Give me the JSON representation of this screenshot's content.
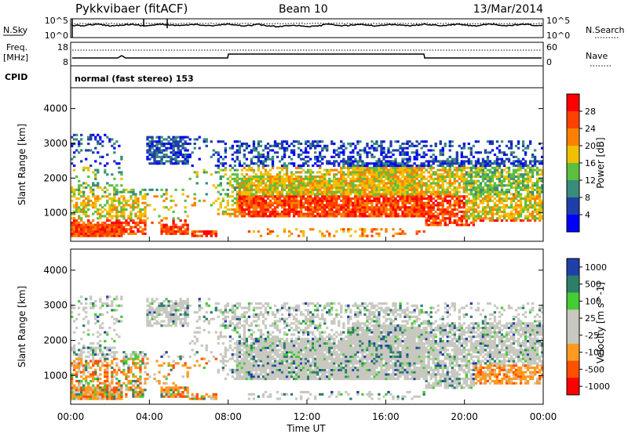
{
  "header": {
    "station": "Pykkvibaer (fitACF)",
    "beam": "Beam 10",
    "date": "13/Mar/2014"
  },
  "noise_panel": {
    "left_label": "N.Sky",
    "left_tick_top": "10^5",
    "left_tick_bottom": "10^0",
    "right_tick_top": "10^5",
    "right_tick_bottom": "10^0",
    "right_label": "N.Search"
  },
  "freq_panel": {
    "left_label_1": "Freq.",
    "left_label_2": "[MHz]",
    "left_tick_top": "18",
    "left_tick_bottom": "8",
    "right_tick_top": "60",
    "right_tick_bottom": "0",
    "right_label": "Nave"
  },
  "cpid_panel": {
    "label": "CPID",
    "text": "normal (fast stereo) 153"
  },
  "colors": {
    "power": [
      "#0000ff",
      "#1f3fa8",
      "#3a8c7a",
      "#5bbf3f",
      "#f0c000",
      "#ff8000",
      "#ff4000",
      "#ff0000"
    ],
    "velocity": [
      "#ff0000",
      "#ff5000",
      "#ff9a20",
      "#c8c8c0",
      "#c8c8c0",
      "#44cc33",
      "#2e7f6a",
      "#2040a8"
    ]
  },
  "chart_data": [
    {
      "type": "heatmap",
      "title": "",
      "ylabel": "Slant Range [km]",
      "xlabel": "",
      "yticks": [
        "1000",
        "2000",
        "3000",
        "4000"
      ],
      "ylim": [
        180,
        4600
      ],
      "xlim": [
        "00:00",
        "24:00"
      ],
      "colorbar": {
        "label": "Power [dB]",
        "ticks": [
          "4",
          "8",
          "12",
          "16",
          "20",
          "24",
          "28"
        ],
        "range": [
          0,
          32
        ]
      }
    },
    {
      "type": "heatmap",
      "title": "",
      "ylabel": "Slant Range [km]",
      "xlabel": "Time UT",
      "yticks": [
        "1000",
        "2000",
        "3000",
        "4000"
      ],
      "xticks": [
        "00:00",
        "04:00",
        "08:00",
        "12:00",
        "16:00",
        "20:00",
        "00:00"
      ],
      "ylim": [
        180,
        4600
      ],
      "xlim": [
        "00:00",
        "24:00"
      ],
      "colorbar": {
        "label": "Velocity [m s^-1]",
        "ticks": [
          "1000",
          "500",
          "100",
          "25",
          "-25",
          "-100",
          "-500",
          "-1000"
        ]
      }
    }
  ]
}
